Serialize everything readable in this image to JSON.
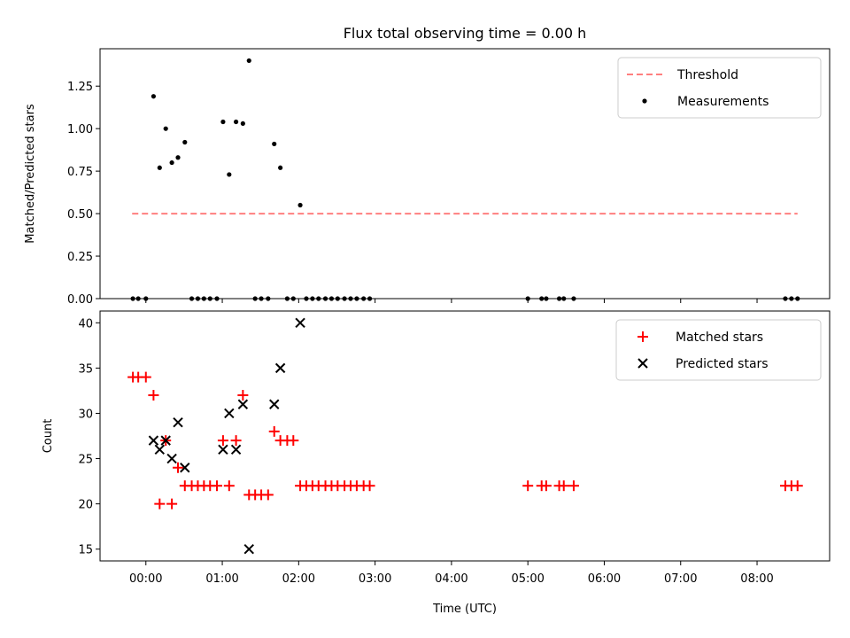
{
  "chart_data": [
    {
      "type": "scatter",
      "title": "Flux total observing time = 0.00 h",
      "xlabel": "",
      "ylabel": "Matched/Predicted stars",
      "ylim": [
        0,
        1.47
      ],
      "xlim_hours": [
        -0.6,
        8.95
      ],
      "yticks": [
        "0.00",
        "0.25",
        "0.50",
        "0.75",
        "1.00",
        "1.25"
      ],
      "legend_position": "top-right",
      "threshold": {
        "name": "Threshold",
        "y": 0.5,
        "x_range_hours": [
          -0.18,
          8.53
        ],
        "color": "#ff7f7f"
      },
      "series": [
        {
          "name": "Measurements",
          "color": "#000000",
          "points": [
            [
              -0.17,
              0
            ],
            [
              -0.1,
              0
            ],
            [
              0.0,
              0
            ],
            [
              0.1,
              1.19
            ],
            [
              0.18,
              0.77
            ],
            [
              0.26,
              1.0
            ],
            [
              0.34,
              0.8
            ],
            [
              0.42,
              0.83
            ],
            [
              0.51,
              0.92
            ],
            [
              0.6,
              0
            ],
            [
              0.68,
              0
            ],
            [
              0.76,
              0
            ],
            [
              0.84,
              0
            ],
            [
              0.93,
              0
            ],
            [
              1.01,
              1.04
            ],
            [
              1.09,
              0.73
            ],
            [
              1.18,
              1.04
            ],
            [
              1.27,
              1.03
            ],
            [
              1.35,
              1.4
            ],
            [
              1.43,
              0
            ],
            [
              1.51,
              0
            ],
            [
              1.6,
              0
            ],
            [
              1.68,
              0.91
            ],
            [
              1.76,
              0.77
            ],
            [
              1.85,
              0
            ],
            [
              1.93,
              0
            ],
            [
              2.02,
              0.55
            ],
            [
              2.1,
              0
            ],
            [
              2.18,
              0
            ],
            [
              2.26,
              0
            ],
            [
              2.35,
              0
            ],
            [
              2.43,
              0
            ],
            [
              2.51,
              0
            ],
            [
              2.6,
              0
            ],
            [
              2.68,
              0
            ],
            [
              2.76,
              0
            ],
            [
              2.85,
              0
            ],
            [
              2.93,
              0
            ],
            [
              5.0,
              0
            ],
            [
              5.18,
              0
            ],
            [
              5.24,
              0
            ],
            [
              5.41,
              0
            ],
            [
              5.47,
              0
            ],
            [
              5.6,
              0
            ],
            [
              8.37,
              0
            ],
            [
              8.45,
              0
            ],
            [
              8.53,
              0
            ]
          ]
        }
      ]
    },
    {
      "type": "scatter",
      "title": "",
      "xlabel": "Time (UTC)",
      "ylabel": "Count",
      "ylim": [
        13.7,
        41.3
      ],
      "xlim_hours": [
        -0.6,
        8.95
      ],
      "yticks": [
        "15",
        "20",
        "25",
        "30",
        "35",
        "40"
      ],
      "xticks": [
        "00:00",
        "01:00",
        "02:00",
        "03:00",
        "04:00",
        "05:00",
        "06:00",
        "07:00",
        "08:00"
      ],
      "legend_position": "top-right",
      "series": [
        {
          "name": "Matched stars",
          "marker": "plus",
          "color": "#ff0000",
          "points": [
            [
              -0.17,
              34
            ],
            [
              -0.1,
              34
            ],
            [
              0.0,
              34
            ],
            [
              0.1,
              32
            ],
            [
              0.18,
              20
            ],
            [
              0.26,
              27
            ],
            [
              0.34,
              20
            ],
            [
              0.42,
              24
            ],
            [
              0.51,
              22
            ],
            [
              0.6,
              22
            ],
            [
              0.68,
              22
            ],
            [
              0.76,
              22
            ],
            [
              0.84,
              22
            ],
            [
              0.93,
              22
            ],
            [
              1.01,
              27
            ],
            [
              1.09,
              22
            ],
            [
              1.18,
              27
            ],
            [
              1.27,
              32
            ],
            [
              1.35,
              21
            ],
            [
              1.43,
              21
            ],
            [
              1.51,
              21
            ],
            [
              1.6,
              21
            ],
            [
              1.68,
              28
            ],
            [
              1.76,
              27
            ],
            [
              1.85,
              27
            ],
            [
              1.93,
              27
            ],
            [
              2.02,
              22
            ],
            [
              2.1,
              22
            ],
            [
              2.18,
              22
            ],
            [
              2.26,
              22
            ],
            [
              2.35,
              22
            ],
            [
              2.43,
              22
            ],
            [
              2.51,
              22
            ],
            [
              2.6,
              22
            ],
            [
              2.68,
              22
            ],
            [
              2.76,
              22
            ],
            [
              2.85,
              22
            ],
            [
              2.93,
              22
            ],
            [
              5.0,
              22
            ],
            [
              5.18,
              22
            ],
            [
              5.24,
              22
            ],
            [
              5.41,
              22
            ],
            [
              5.47,
              22
            ],
            [
              5.6,
              22
            ],
            [
              8.37,
              22
            ],
            [
              8.45,
              22
            ],
            [
              8.53,
              22
            ]
          ]
        },
        {
          "name": "Predicted stars",
          "marker": "x",
          "color": "#000000",
          "points": [
            [
              0.1,
              27
            ],
            [
              0.18,
              26
            ],
            [
              0.26,
              27
            ],
            [
              0.34,
              25
            ],
            [
              0.42,
              29
            ],
            [
              0.51,
              24
            ],
            [
              1.01,
              26
            ],
            [
              1.09,
              30
            ],
            [
              1.18,
              26
            ],
            [
              1.27,
              31
            ],
            [
              1.35,
              15
            ],
            [
              1.68,
              31
            ],
            [
              1.76,
              35
            ],
            [
              2.02,
              40
            ]
          ]
        }
      ]
    }
  ]
}
